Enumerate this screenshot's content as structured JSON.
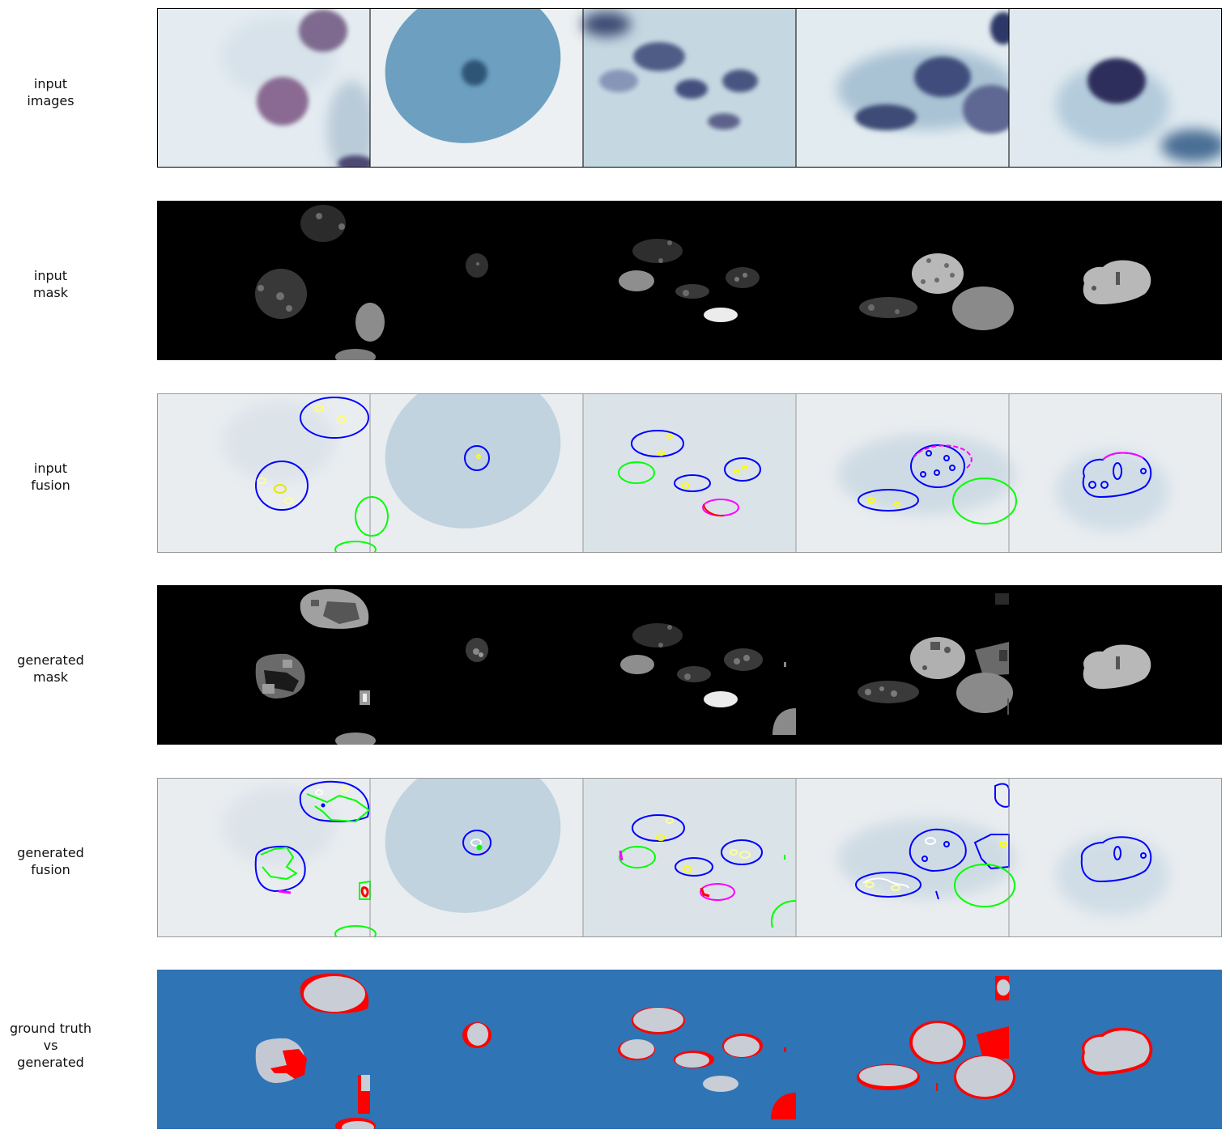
{
  "rows": [
    {
      "id": "input-images",
      "label_lines": [
        "input",
        "images"
      ]
    },
    {
      "id": "input-mask",
      "label_lines": [
        "input",
        "mask"
      ]
    },
    {
      "id": "input-fusion",
      "label_lines": [
        "input",
        "fusion"
      ]
    },
    {
      "id": "generated-mask",
      "label_lines": [
        "generated",
        "mask"
      ]
    },
    {
      "id": "generated-fusion",
      "label_lines": [
        "generated",
        "fusion"
      ]
    },
    {
      "id": "ground-truth-vs-generated",
      "label_lines": [
        "ground truth",
        "vs",
        "generated"
      ]
    }
  ],
  "colors": {
    "contour_blue": "#0000ff",
    "contour_green": "#00ff00",
    "contour_yellow": "#ffff00",
    "contour_magenta": "#ff00ff",
    "contour_red": "#ff0000",
    "diff_background": "#2f74b5",
    "diff_error": "#ff0000"
  },
  "panels_per_row": 5
}
